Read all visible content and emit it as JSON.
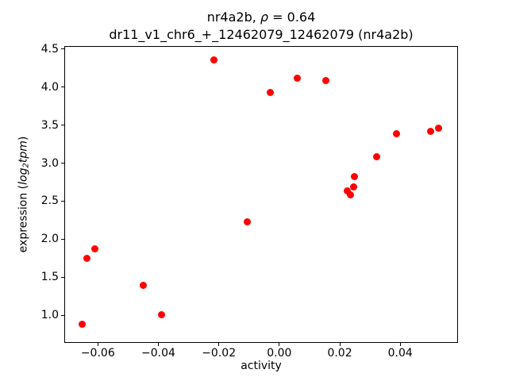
{
  "title": {
    "line1_gene": "nr4a2b, ",
    "line1_rho": "ρ",
    "line1_rest": " = 0.64",
    "line2": "dr11_v1_chr6_+_12462079_12462079 (nr4a2b)"
  },
  "axes": {
    "xlabel": "activity",
    "ylabel_prefix": "expression (",
    "ylabel_log": "log",
    "ylabel_sub": "2",
    "ylabel_tpm": "tpm",
    "ylabel_suffix": ")"
  },
  "chart_data": {
    "type": "scatter",
    "title": "nr4a2b, ρ = 0.64\ndr11_v1_chr6_+_12462079_12462079 (nr4a2b)",
    "xlabel": "activity",
    "ylabel": "expression (log2tpm)",
    "marker_color": "#ff0000",
    "grid": false,
    "legend": "none",
    "xlim": [
      -0.0711,
      0.0591
    ],
    "ylim": [
      0.638,
      4.539
    ],
    "xticks": [
      -0.06,
      -0.04,
      -0.02,
      0.0,
      0.02,
      0.04
    ],
    "xtick_labels": [
      "−0.06",
      "−0.04",
      "−0.02",
      "0.00",
      "0.02",
      "0.04"
    ],
    "yticks": [
      1.0,
      1.5,
      2.0,
      2.5,
      3.0,
      3.5,
      4.0,
      4.5
    ],
    "ytick_labels": [
      "1.0",
      "1.5",
      "2.0",
      "2.5",
      "3.0",
      "3.5",
      "4.0",
      "4.5"
    ],
    "points": [
      [
        -0.0653,
        0.88
      ],
      [
        -0.0637,
        1.75
      ],
      [
        -0.0611,
        1.87
      ],
      [
        -0.0451,
        1.39
      ],
      [
        -0.039,
        1.01
      ],
      [
        -0.0216,
        4.36
      ],
      [
        -0.0106,
        2.23
      ],
      [
        -0.0031,
        3.93
      ],
      [
        0.006,
        4.12
      ],
      [
        0.0154,
        4.09
      ],
      [
        0.0224,
        2.64
      ],
      [
        0.0236,
        2.58
      ],
      [
        0.0247,
        2.69
      ],
      [
        0.0249,
        2.82
      ],
      [
        0.0323,
        3.08
      ],
      [
        0.0387,
        3.39
      ],
      [
        0.05,
        3.42
      ],
      [
        0.0527,
        3.46
      ]
    ]
  }
}
